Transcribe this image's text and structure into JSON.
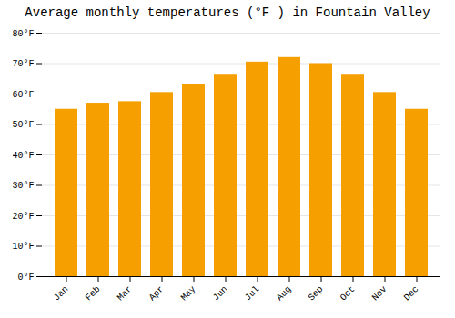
{
  "chart_data": {
    "type": "bar",
    "title": "Average monthly temperatures (°F ) in Fountain Valley",
    "categories": [
      "Jan",
      "Feb",
      "Mar",
      "Apr",
      "May",
      "Jun",
      "Jul",
      "Aug",
      "Sep",
      "Oct",
      "Nov",
      "Dec"
    ],
    "values": [
      55,
      57,
      57.5,
      60.5,
      63,
      66.5,
      70.5,
      72,
      70,
      66.5,
      60.5,
      55
    ],
    "color": "#F5A000",
    "ylim": [
      0,
      80
    ],
    "yticks": [
      {
        "value": 0,
        "label": "0°F"
      },
      {
        "value": 10,
        "label": "10°F"
      },
      {
        "value": 20,
        "label": "20°F"
      },
      {
        "value": 30,
        "label": "30°F"
      },
      {
        "value": 40,
        "label": "40°F"
      },
      {
        "value": 50,
        "label": "50°F"
      },
      {
        "value": 60,
        "label": "60°F"
      },
      {
        "value": 70,
        "label": "70°F"
      },
      {
        "value": 80,
        "label": "80°F"
      }
    ],
    "grid": true
  }
}
